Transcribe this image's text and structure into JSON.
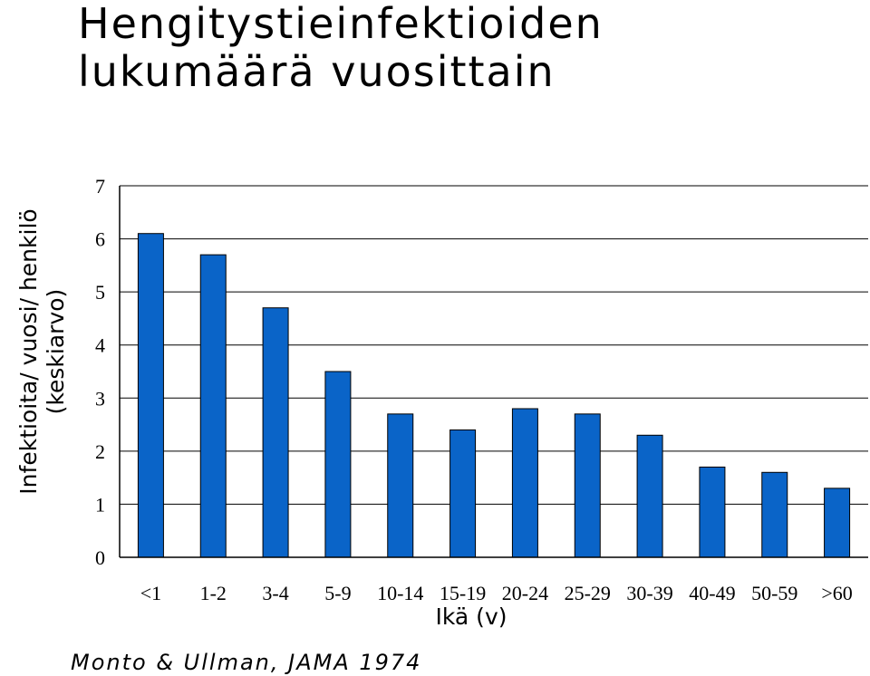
{
  "chart_data": {
    "type": "bar",
    "title_lines": [
      "Hengitystieinfektioiden",
      "lukumäärä vuosittain"
    ],
    "xlabel": "Ikä (v)",
    "ylabel_lines": [
      "Infektioita/ vuosi/ henkilö",
      "(keskiarvo)"
    ],
    "source": "Monto & Ullman, JAMA 1974",
    "categories": [
      "<1",
      "1-2",
      "3-4",
      "5-9",
      "10-14",
      "15-19",
      "20-24",
      "25-29",
      "30-39",
      "40-49",
      "50-59",
      ">60"
    ],
    "values": [
      6.1,
      5.7,
      4.7,
      3.5,
      2.7,
      2.4,
      2.8,
      2.7,
      2.3,
      1.7,
      1.6,
      1.3
    ],
    "ylim": [
      0,
      7
    ],
    "yticks": [
      "0",
      "1",
      "2",
      "3",
      "4",
      "5",
      "6",
      "7"
    ],
    "grid": true,
    "legend": "none",
    "bar_color": "#0a64c8"
  }
}
